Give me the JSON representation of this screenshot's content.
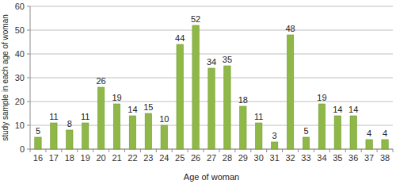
{
  "chart_data": {
    "type": "bar",
    "x_label": "Age of woman",
    "y_label": "study sample in each age of woman",
    "categories": [
      "16",
      "17",
      "18",
      "19",
      "20",
      "21",
      "22",
      "23",
      "24",
      "25",
      "26",
      "27",
      "28",
      "29",
      "30",
      "31",
      "32",
      "33",
      "34",
      "35",
      "36",
      "37",
      "38"
    ],
    "values": [
      5,
      11,
      8,
      11,
      26,
      19,
      14,
      15,
      10,
      44,
      52,
      34,
      35,
      18,
      11,
      3,
      48,
      5,
      19,
      14,
      14,
      4,
      4
    ],
    "color": "#8fb849",
    "ylim": [
      0,
      60
    ],
    "yticks": [
      0,
      10,
      20,
      30,
      40,
      50,
      60
    ],
    "grid": true,
    "data_labels": true
  }
}
